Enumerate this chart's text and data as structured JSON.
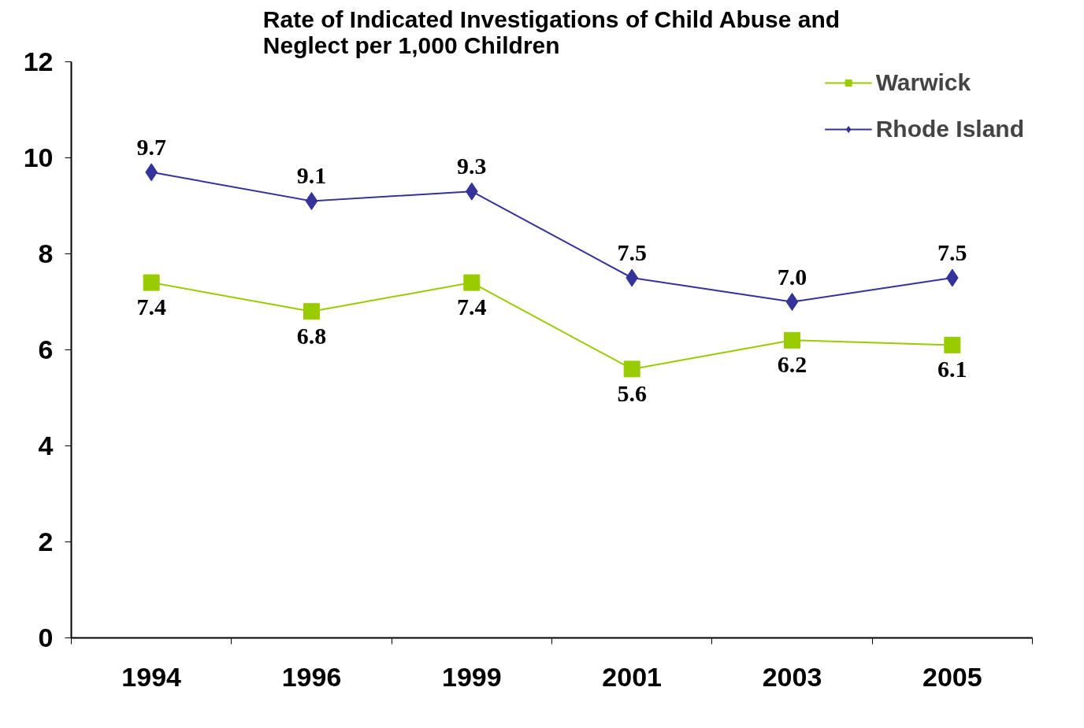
{
  "chart_data": {
    "type": "line",
    "title": "Rate of Indicated Investigations of Child Abuse and\nNeglect per 1,000 Children",
    "categories": [
      "1994",
      "1996",
      "1999",
      "2001",
      "2003",
      "2005"
    ],
    "series": [
      {
        "name": "Warwick",
        "color": "#99cc00",
        "marker": "square",
        "values": [
          7.4,
          6.8,
          7.4,
          5.6,
          6.2,
          6.1
        ],
        "value_labels": [
          "7.4",
          "6.8",
          "7.4",
          "5.6",
          "6.2",
          "6.1"
        ]
      },
      {
        "name": "Rhode Island",
        "color": "#333399",
        "marker": "diamond",
        "values": [
          9.7,
          9.1,
          9.3,
          7.5,
          7.0,
          7.5
        ],
        "value_labels": [
          "9.7",
          "9.1",
          "9.3",
          "7.5",
          "7.0",
          "7.5"
        ]
      }
    ],
    "ylim": [
      0,
      12
    ],
    "yticks": [
      0,
      2,
      4,
      6,
      8,
      10,
      12
    ],
    "grid": false,
    "legend": "top right",
    "line_style": "solid"
  }
}
